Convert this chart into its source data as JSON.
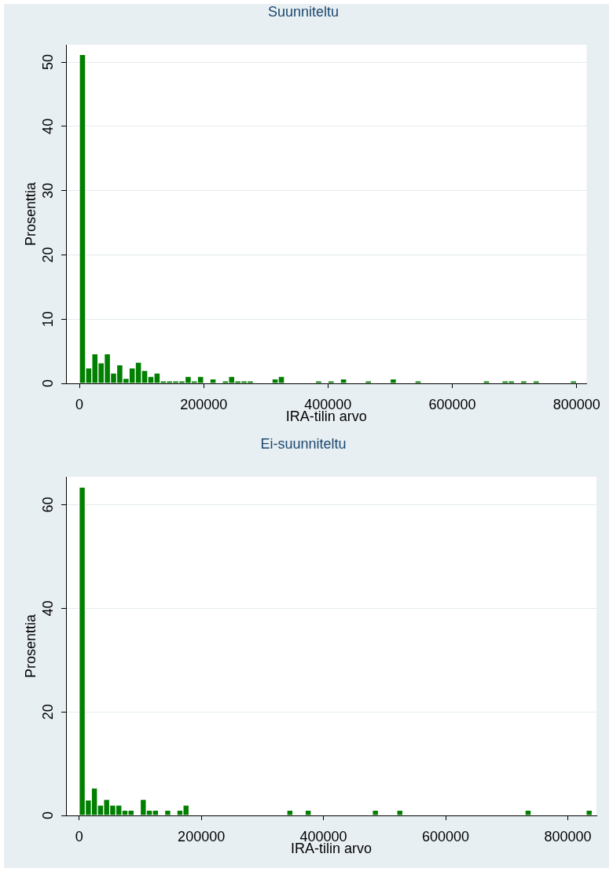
{
  "chart_data": [
    {
      "type": "histogram",
      "title": "Suunniteltu",
      "xlabel": "IRA-tilin arvo",
      "ylabel": "Prosenttia",
      "bins": [
        0,
        10000,
        20000,
        30000,
        40000,
        50000,
        60000,
        70000,
        80000,
        90000,
        100000,
        110000,
        120000,
        130000,
        140000,
        150000,
        160000,
        170000,
        180000,
        190000,
        200000,
        210000,
        220000,
        230000,
        240000,
        250000,
        260000,
        270000,
        280000,
        290000,
        300000,
        310000,
        320000,
        330000,
        340000,
        350000,
        360000,
        370000,
        380000,
        390000,
        400000,
        410000,
        420000,
        430000,
        440000,
        450000,
        460000,
        470000,
        480000,
        490000,
        500000,
        510000,
        520000,
        530000,
        540000,
        550000,
        560000,
        570000,
        580000,
        590000,
        600000,
        610000,
        620000,
        630000,
        640000,
        650000,
        660000,
        670000,
        680000,
        690000,
        700000,
        710000,
        720000,
        730000,
        740000,
        750000,
        760000,
        770000,
        780000,
        790000,
        800000
      ],
      "values": [
        51.2,
        2.4,
        4.6,
        3.2,
        4.6,
        1.6,
        2.9,
        0.8,
        2.4,
        3.3,
        2.0,
        1.1,
        1.6,
        0.4,
        0.4,
        0.4,
        0.4,
        1.1,
        0.4,
        1.1,
        0,
        0.7,
        0,
        0.4,
        1.1,
        0.4,
        0.4,
        0.4,
        0,
        0,
        0,
        0.7,
        1.1,
        0,
        0,
        0,
        0,
        0,
        0.4,
        0,
        0.4,
        0,
        0.7,
        0,
        0,
        0,
        0.4,
        0,
        0,
        0,
        0.7,
        0,
        0,
        0,
        0.4,
        0,
        0,
        0,
        0,
        0,
        0,
        0,
        0,
        0,
        0,
        0.4,
        0,
        0,
        0.4,
        0.4,
        0,
        0.4,
        0,
        0.4,
        0,
        0,
        0,
        0,
        0,
        0.4
      ],
      "color": "#007f00",
      "xlim": [
        -21500,
        816000
      ],
      "ylim": [
        0,
        52.7
      ],
      "xticks": [
        0,
        200000,
        400000,
        600000,
        800000
      ],
      "yticks": [
        0,
        10,
        20,
        30,
        40,
        50
      ],
      "grid": "y"
    },
    {
      "type": "histogram",
      "title": "Ei-suunniteltu",
      "xlabel": "IRA-tilin arvo",
      "ylabel": "Prosenttia",
      "bins": [
        0,
        10000,
        20000,
        30000,
        40000,
        50000,
        60000,
        70000,
        80000,
        90000,
        100000,
        110000,
        120000,
        130000,
        140000,
        150000,
        160000,
        170000,
        180000,
        190000,
        200000,
        210000,
        220000,
        230000,
        240000,
        250000,
        260000,
        270000,
        280000,
        290000,
        300000,
        310000,
        320000,
        330000,
        340000,
        350000,
        360000,
        370000,
        380000,
        390000,
        400000,
        410000,
        420000,
        430000,
        440000,
        450000,
        460000,
        470000,
        480000,
        490000,
        500000,
        510000,
        520000,
        530000,
        540000,
        550000,
        560000,
        570000,
        580000,
        590000,
        600000,
        610000,
        620000,
        630000,
        640000,
        650000,
        660000,
        670000,
        680000,
        690000,
        700000,
        710000,
        720000,
        730000,
        740000,
        750000,
        760000,
        770000,
        780000,
        790000,
        800000,
        810000,
        820000,
        830000,
        840000
      ],
      "values": [
        63.4,
        3.0,
        5.3,
        2.0,
        3.1,
        2.0,
        2.0,
        1.0,
        1.0,
        0,
        3.1,
        1.0,
        1.0,
        0,
        1.0,
        0,
        1.0,
        2.0,
        0,
        0,
        0,
        0,
        0,
        0,
        0,
        0,
        0,
        0,
        0,
        0,
        0,
        0,
        0,
        0,
        1.0,
        0,
        0,
        1.0,
        0,
        0,
        0,
        0,
        0,
        0,
        0,
        0,
        0,
        0,
        1.0,
        0,
        0,
        0,
        1.0,
        0,
        0,
        0,
        0,
        0,
        0,
        0,
        0,
        0,
        0,
        0,
        0,
        0,
        0,
        0,
        0,
        0,
        0,
        0,
        0,
        1.0,
        0,
        0,
        0,
        0,
        0,
        0,
        0,
        0,
        0,
        1.0
      ],
      "color": "#007f00",
      "xlim": [
        -21500,
        847000
      ],
      "ylim": [
        0,
        65.4
      ],
      "xticks": [
        0,
        200000,
        400000,
        600000,
        800000
      ],
      "yticks": [
        0,
        20,
        40,
        60
      ],
      "grid": "y"
    }
  ]
}
